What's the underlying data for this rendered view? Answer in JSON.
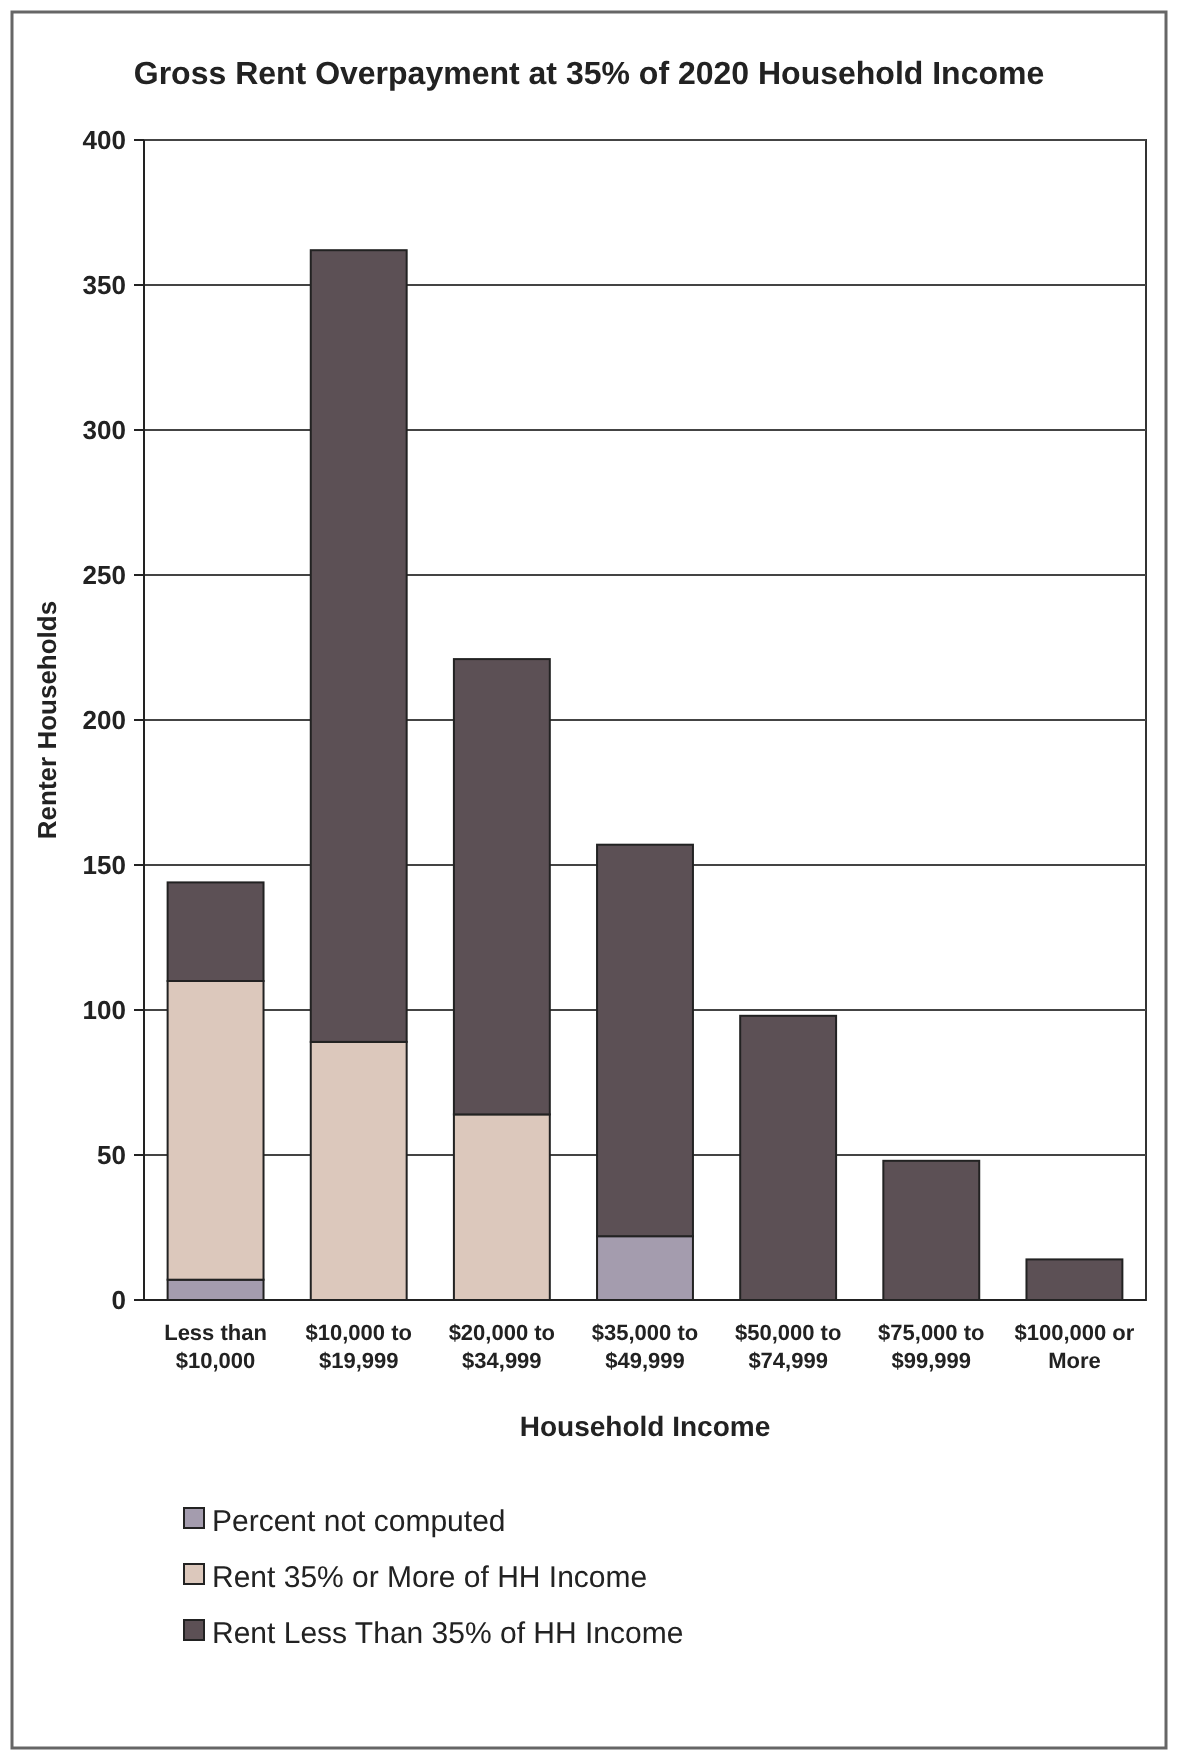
{
  "chart_data": {
    "type": "bar",
    "title": "Gross Rent Overpayment at 35% of 2020 Household Income",
    "xlabel": "Household Income",
    "ylabel": "Renter Households",
    "categories": [
      "Less than $10,000",
      "$10,000 to $19,999",
      "$20,000 to $34,999",
      "$35,000 to $49,999",
      "$50,000 to $74,999",
      "$75,000 to $99,999",
      "$100,000 or More"
    ],
    "series": [
      {
        "name": "Percent not computed",
        "color": "#a49cae",
        "values": [
          7,
          0,
          0,
          22,
          0,
          0,
          0
        ]
      },
      {
        "name": "Rent 35% or More of HH Income",
        "color": "#dcc8bc",
        "values": [
          103,
          89,
          64,
          0,
          0,
          0,
          0
        ]
      },
      {
        "name": "Rent Less Than 35% of HH Income",
        "color": "#5c5055",
        "values": [
          34,
          273,
          157,
          135,
          98,
          48,
          14
        ]
      }
    ],
    "stacked": true,
    "ylim": [
      0,
      400
    ],
    "yticks": [
      0,
      50,
      100,
      150,
      200,
      250,
      300,
      350,
      400
    ],
    "grid": "y",
    "legend": "bottom"
  }
}
